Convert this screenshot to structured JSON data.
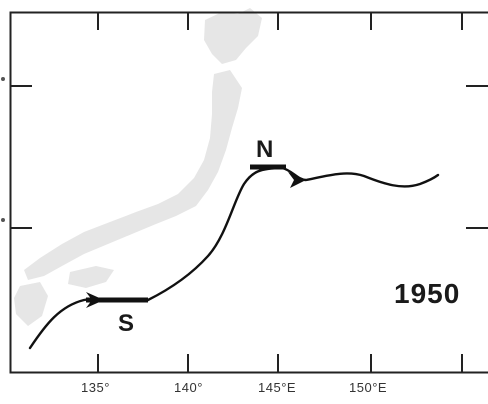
{
  "map": {
    "year": "1950",
    "markers": {
      "north": "N",
      "south": "S"
    },
    "lon_labels": [
      "135°",
      "140°",
      "145°E",
      "150°E"
    ],
    "colors": {
      "land": "#e6e6e6",
      "current": "#111111",
      "frame": "#222222"
    }
  }
}
